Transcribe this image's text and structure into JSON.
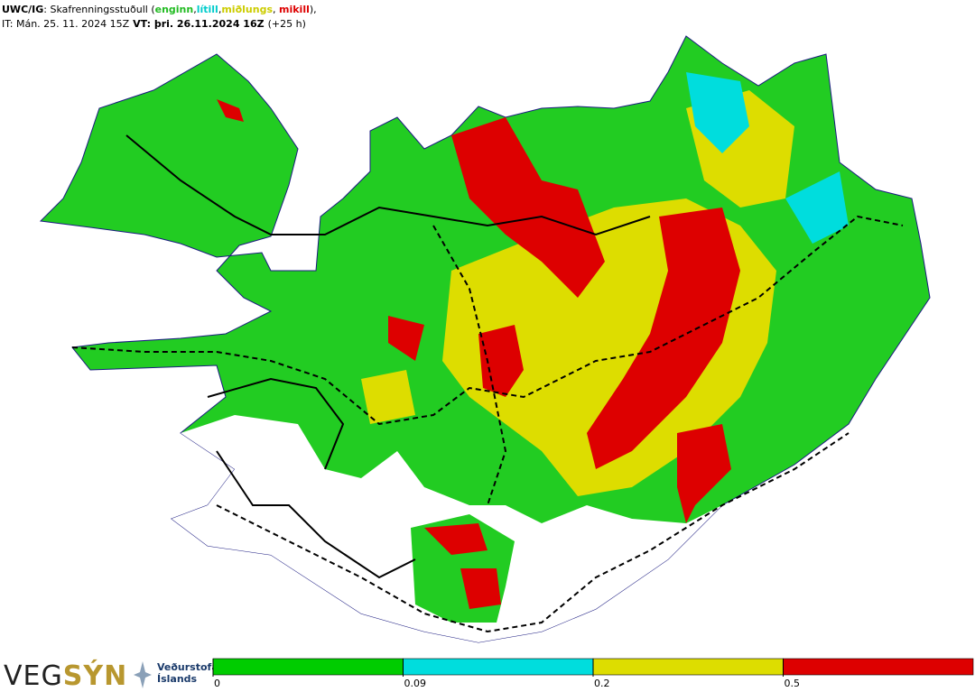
{
  "header": {
    "line1": [
      {
        "text": "UWC/IG",
        "bold": true,
        "color": "#000000"
      },
      {
        "text": ": Skafrenningsstuðull (",
        "bold": false,
        "color": "#000000"
      },
      {
        "text": "enginn",
        "bold": true,
        "color": "#22bb22"
      },
      {
        "text": ",",
        "bold": false,
        "color": "#000000"
      },
      {
        "text": "lítill",
        "bold": true,
        "color": "#00cccc"
      },
      {
        "text": ",",
        "bold": false,
        "color": "#000000"
      },
      {
        "text": "miðlungs",
        "bold": true,
        "color": "#cccc00"
      },
      {
        "text": ", ",
        "bold": false,
        "color": "#000000"
      },
      {
        "text": "mikill",
        "bold": true,
        "color": "#dd0000"
      },
      {
        "text": "),",
        "bold": false,
        "color": "#000000"
      }
    ],
    "line2": [
      {
        "text": "IT: Mán. 25. 11. 2024 15Z",
        "bold": false
      },
      {
        "text": "VT: þri. 26.11.2024 16Z",
        "bold": true
      },
      {
        "text": "(+25 h)",
        "bold": false
      }
    ]
  },
  "logo": {
    "left": "VEG",
    "right": "SÝN",
    "org1": "Veðurstofa",
    "org2": "Íslands"
  },
  "legend": {
    "ticks": [
      0,
      0.09,
      0.2,
      0.5
    ],
    "colors": [
      "#00cc00",
      "#00dddd",
      "#dddd00",
      "#dd0000"
    ]
  }
}
